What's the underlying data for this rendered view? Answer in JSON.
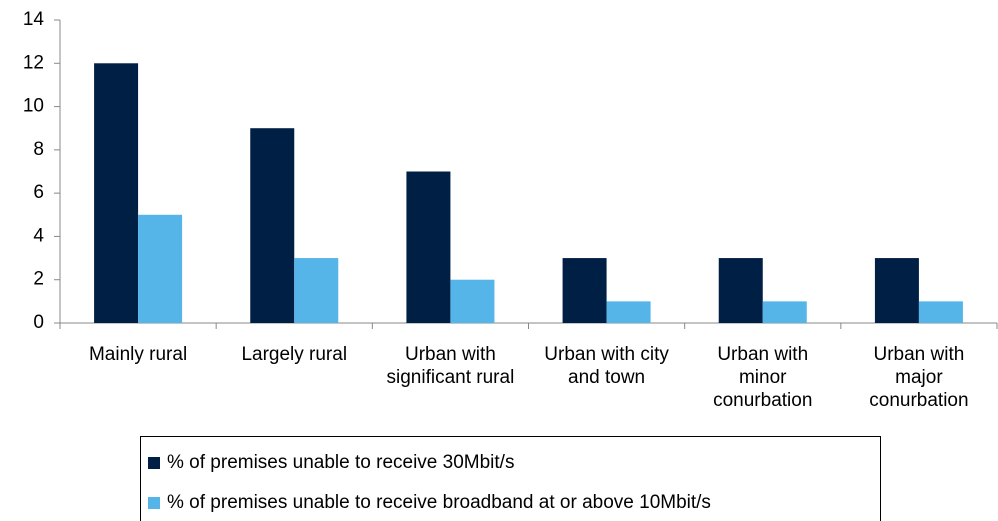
{
  "chart_data": {
    "type": "bar",
    "categories": [
      "Mainly rural",
      "Largely rural",
      "Urban with significant rural",
      "Urban with city and town",
      "Urban with minor conurbation",
      "Urban with major conurbation"
    ],
    "series": [
      {
        "name": "% of premises unable to receive 30Mbit/s",
        "color": "#001f45",
        "values": [
          12,
          9,
          7,
          3,
          3,
          3
        ]
      },
      {
        "name": "% of premises unable to receive broadband at or above 10Mbit/s",
        "color": "#55b4e8",
        "values": [
          5,
          3,
          2,
          1,
          1,
          1
        ]
      }
    ],
    "ylim": [
      0,
      14
    ],
    "yticks": [
      0,
      2,
      4,
      6,
      8,
      10,
      12,
      14
    ],
    "grid": false
  }
}
